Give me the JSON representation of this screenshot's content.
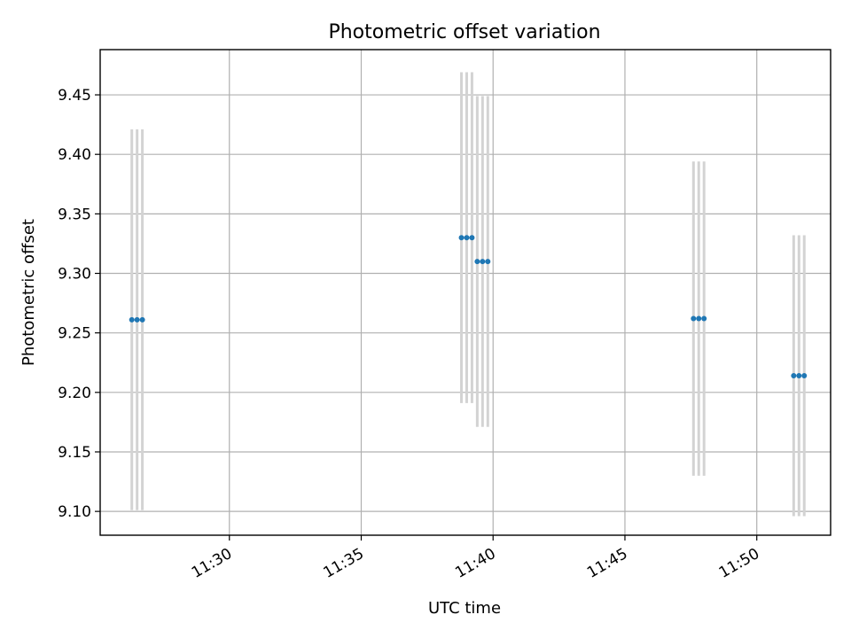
{
  "chart_data": {
    "type": "scatter",
    "title": "Photometric offset variation",
    "xlabel": "UTC time",
    "ylabel": "Photometric offset",
    "x_is_time": true,
    "xlim": [
      "11:25:06",
      "11:52:48"
    ],
    "ylim": [
      9.08,
      9.488
    ],
    "grid": true,
    "xticks": [
      "11:30",
      "11:35",
      "11:40",
      "11:45",
      "11:50"
    ],
    "yticks": [
      9.1,
      9.15,
      9.2,
      9.25,
      9.3,
      9.35,
      9.4,
      9.45
    ],
    "ytick_labels": [
      "9.10",
      "9.15",
      "9.20",
      "9.25",
      "9.30",
      "9.35",
      "9.40",
      "9.45"
    ],
    "colors": {
      "marker": "#1f77b4",
      "errorbar": "#d3d3d3",
      "grid": "#b0b0b0"
    },
    "series": [
      {
        "points": [
          {
            "x": "11:26:18",
            "y": 9.261,
            "yerr": 0.16
          },
          {
            "x": "11:26:30",
            "y": 9.261,
            "yerr": 0.16
          },
          {
            "x": "11:26:42",
            "y": 9.261,
            "yerr": 0.16
          },
          {
            "x": "11:38:48",
            "y": 9.33,
            "yerr": 0.139
          },
          {
            "x": "11:39:00",
            "y": 9.33,
            "yerr": 0.139
          },
          {
            "x": "11:39:12",
            "y": 9.33,
            "yerr": 0.139
          },
          {
            "x": "11:39:24",
            "y": 9.31,
            "yerr": 0.139
          },
          {
            "x": "11:39:36",
            "y": 9.31,
            "yerr": 0.139
          },
          {
            "x": "11:39:48",
            "y": 9.31,
            "yerr": 0.139
          },
          {
            "x": "11:47:36",
            "y": 9.262,
            "yerr": 0.132
          },
          {
            "x": "11:47:48",
            "y": 9.262,
            "yerr": 0.132
          },
          {
            "x": "11:48:00",
            "y": 9.262,
            "yerr": 0.132
          },
          {
            "x": "11:51:24",
            "y": 9.214,
            "yerr": 0.118
          },
          {
            "x": "11:51:36",
            "y": 9.214,
            "yerr": 0.118
          },
          {
            "x": "11:51:48",
            "y": 9.214,
            "yerr": 0.118
          }
        ]
      }
    ]
  }
}
